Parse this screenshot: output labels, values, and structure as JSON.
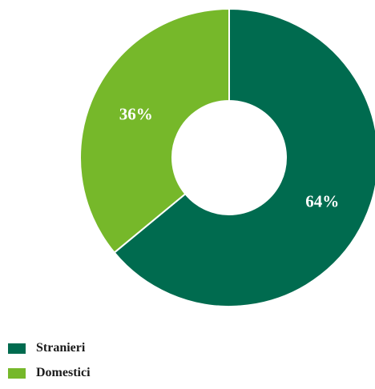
{
  "chart_data": {
    "type": "pie",
    "variant": "donut",
    "series": [
      {
        "name": "Stranieri",
        "value": 64,
        "label": "64%",
        "color": "#006B4F"
      },
      {
        "name": "Domestici",
        "value": 36,
        "label": "36%",
        "color": "#76B82A"
      }
    ],
    "legend_position": "bottom-left",
    "start_angle": "top, clockwise"
  }
}
